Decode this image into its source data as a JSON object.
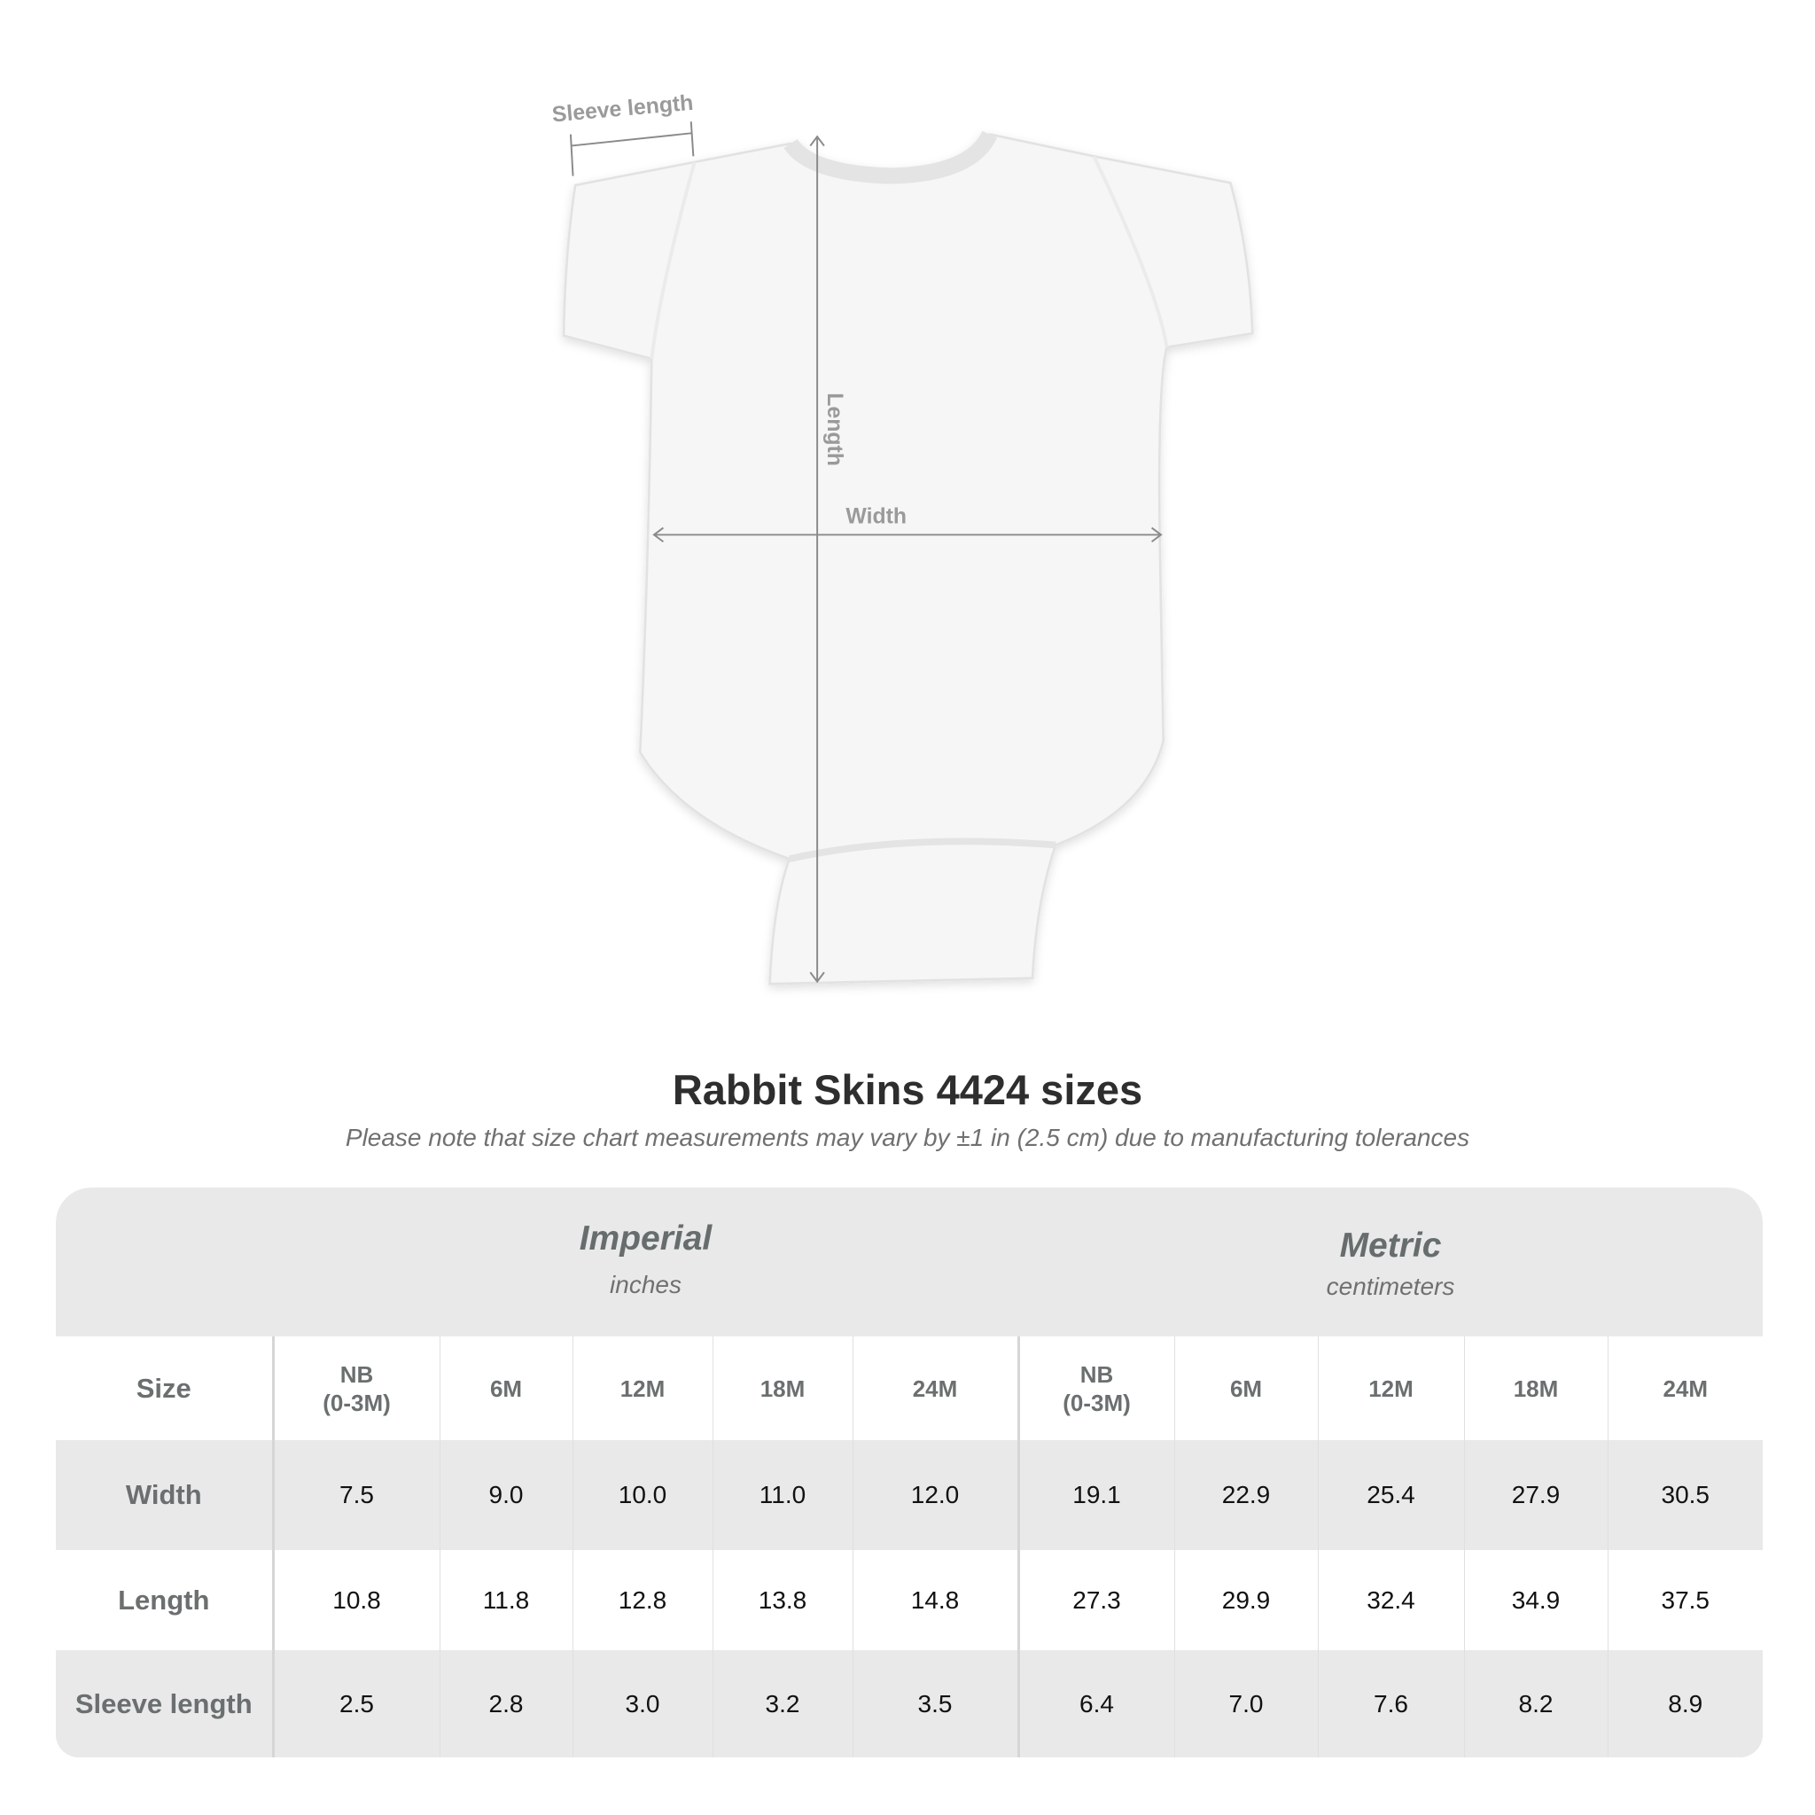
{
  "diagram": {
    "sleeve_label": "Sleeve length",
    "length_label": "Length",
    "width_label": "Width"
  },
  "title": "Rabbit Skins 4424 sizes",
  "subtitle": "Please note that size chart measurements may vary by ±1 in (2.5 cm) due to manufacturing tolerances",
  "table": {
    "imperial": {
      "label": "Imperial",
      "unit": "inches"
    },
    "metric": {
      "label": "Metric",
      "unit": "centimeters"
    },
    "size_label": "Size",
    "sizes": [
      "NB\n(0-3M)",
      "6M",
      "12M",
      "18M",
      "24M"
    ],
    "rows": [
      {
        "label": "Width",
        "imperial": [
          "7.5",
          "9.0",
          "10.0",
          "11.0",
          "12.0"
        ],
        "metric": [
          "19.1",
          "22.9",
          "25.4",
          "27.9",
          "30.5"
        ]
      },
      {
        "label": "Length",
        "imperial": [
          "10.8",
          "11.8",
          "12.8",
          "13.8",
          "14.8"
        ],
        "metric": [
          "27.3",
          "29.9",
          "32.4",
          "34.9",
          "37.5"
        ]
      },
      {
        "label": "Sleeve length",
        "imperial": [
          "2.5",
          "2.8",
          "3.0",
          "3.2",
          "3.5"
        ],
        "metric": [
          "6.4",
          "7.0",
          "7.6",
          "8.2",
          "8.9"
        ]
      }
    ]
  },
  "colors": {
    "header_text": "#6b6f6f",
    "band": "#e9e9e9",
    "measure_line": "#8a8a8a"
  }
}
